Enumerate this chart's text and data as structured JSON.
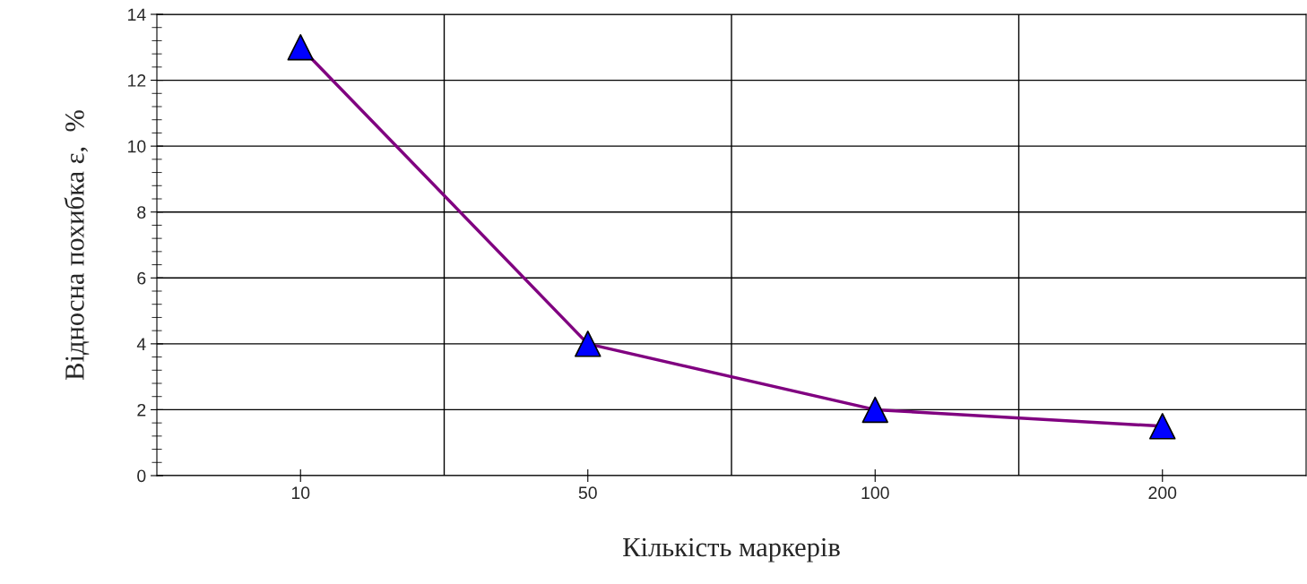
{
  "chart_data": {
    "type": "line",
    "xlabel": "Кількість маркерів",
    "ylabel": "Відносна похибка ε,  %",
    "categories": [
      "10",
      "50",
      "100",
      "200"
    ],
    "series": [
      {
        "color": "#800080",
        "colors": [
          "#0000ff",
          "#0000ff",
          "#0000ff",
          "#0000ff"
        ],
        "values": [
          13,
          4,
          2,
          1.5
        ]
      }
    ],
    "marker": "triangle",
    "line_style": "solid",
    "ylim": [
      0,
      14
    ],
    "yticks": [
      0,
      2,
      4,
      6,
      8,
      10,
      12,
      14
    ],
    "grid": true,
    "legend": false
  }
}
